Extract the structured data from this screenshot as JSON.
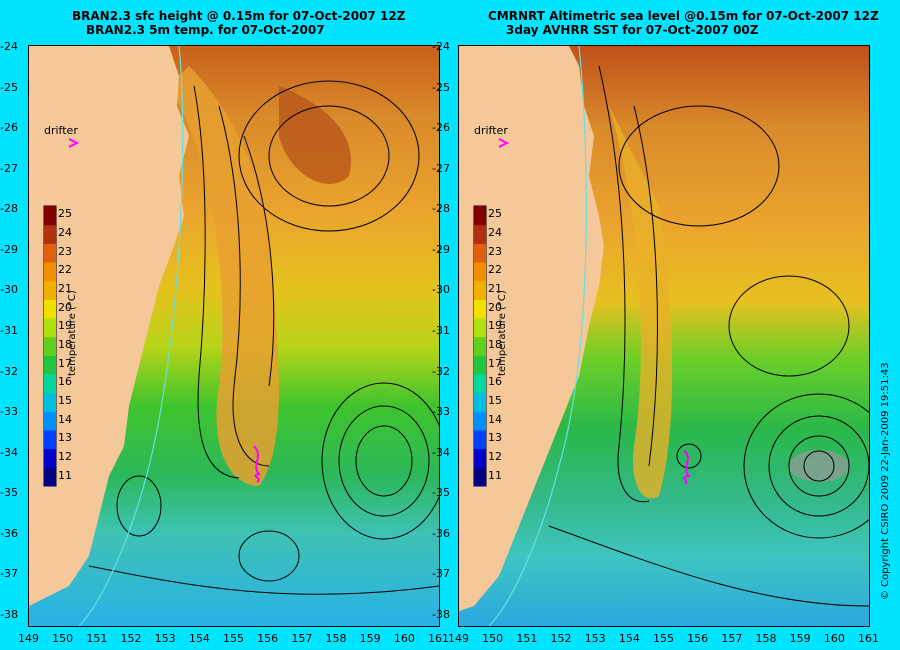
{
  "left_panel": {
    "title_line1": "BRAN2.3 sfc height @ 0.15m for 07-Oct-2007 12Z",
    "title_line2": "BRAN2.3 5m temp. for 07-Oct-2007",
    "drifter_label": "drifter"
  },
  "right_panel": {
    "title_line1": "CMRNRT Altimetric sea level  @0.15m  for 07-Oct-2007 12Z",
    "title_line2": "3day AVHRR SST for 07-Oct-2007 00Z",
    "drifter_label": "drifter"
  },
  "colorbar": {
    "label": "temperature (°C)",
    "ticks": [
      "11",
      "12",
      "13",
      "14",
      "15",
      "16",
      "17",
      "18",
      "19",
      "20",
      "21",
      "22",
      "23",
      "24",
      "25"
    ]
  },
  "axes": {
    "x_ticks": [
      "149",
      "150",
      "151",
      "152",
      "153",
      "154",
      "155",
      "156",
      "157",
      "158",
      "159",
      "160",
      "161"
    ],
    "y_ticks": [
      "-24",
      "-25",
      "-26",
      "-27",
      "-28",
      "-29",
      "-30",
      "-31",
      "-32",
      "-33",
      "-34",
      "-35",
      "-36",
      "-37",
      "-38"
    ]
  },
  "copyright": "© Copyright CSIRO 2009   22-Jan-2009 19:51:43",
  "colors": {
    "background": "#00e5ff",
    "land": "#f5c89a",
    "drifter": "#ff00ff",
    "contour": "#000000",
    "isobath": "#66e0e0"
  }
}
